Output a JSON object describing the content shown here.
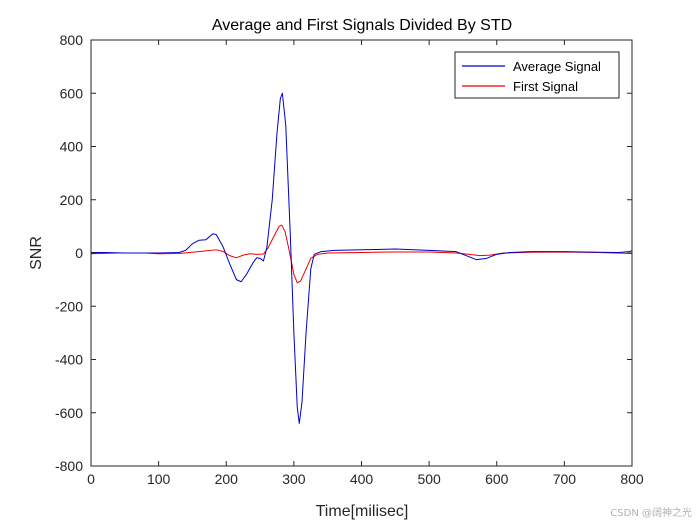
{
  "chart_data": {
    "type": "line",
    "title": "Average and First Signals Divided By STD",
    "xlabel": "Time[milisec]",
    "ylabel": "SNR",
    "xlim": [
      0,
      800
    ],
    "ylim": [
      -800,
      800
    ],
    "xticks": [
      0,
      100,
      200,
      300,
      400,
      500,
      600,
      700,
      800
    ],
    "yticks": [
      -800,
      -600,
      -400,
      -200,
      0,
      200,
      400,
      600,
      800
    ],
    "grid": false,
    "legend_position": "top-right",
    "series": [
      {
        "name": "Average Signal",
        "color": "#0000cc",
        "points": [
          [
            0,
            2
          ],
          [
            20,
            2
          ],
          [
            50,
            0
          ],
          [
            80,
            0
          ],
          [
            100,
            0
          ],
          [
            130,
            2
          ],
          [
            140,
            10
          ],
          [
            150,
            35
          ],
          [
            160,
            48
          ],
          [
            170,
            50
          ],
          [
            180,
            72
          ],
          [
            185,
            70
          ],
          [
            195,
            25
          ],
          [
            205,
            -40
          ],
          [
            215,
            -100
          ],
          [
            222,
            -108
          ],
          [
            230,
            -80
          ],
          [
            240,
            -35
          ],
          [
            245,
            -18
          ],
          [
            250,
            -20
          ],
          [
            255,
            -30
          ],
          [
            260,
            20
          ],
          [
            268,
            200
          ],
          [
            275,
            450
          ],
          [
            280,
            580
          ],
          [
            283,
            600
          ],
          [
            288,
            480
          ],
          [
            295,
            50
          ],
          [
            300,
            -300
          ],
          [
            305,
            -580
          ],
          [
            308,
            -640
          ],
          [
            312,
            -560
          ],
          [
            318,
            -300
          ],
          [
            325,
            -60
          ],
          [
            330,
            -5
          ],
          [
            340,
            5
          ],
          [
            360,
            10
          ],
          [
            400,
            12
          ],
          [
            450,
            15
          ],
          [
            500,
            10
          ],
          [
            540,
            5
          ],
          [
            555,
            -10
          ],
          [
            570,
            -25
          ],
          [
            585,
            -20
          ],
          [
            600,
            -5
          ],
          [
            620,
            2
          ],
          [
            650,
            5
          ],
          [
            700,
            5
          ],
          [
            750,
            3
          ],
          [
            780,
            2
          ],
          [
            795,
            5
          ],
          [
            800,
            8
          ]
        ]
      },
      {
        "name": "First Signal",
        "color": "#ee0000",
        "points": [
          [
            0,
            -3
          ],
          [
            40,
            0
          ],
          [
            80,
            0
          ],
          [
            100,
            -3
          ],
          [
            130,
            -2
          ],
          [
            150,
            3
          ],
          [
            170,
            8
          ],
          [
            185,
            12
          ],
          [
            195,
            6
          ],
          [
            205,
            -10
          ],
          [
            215,
            -18
          ],
          [
            225,
            -8
          ],
          [
            235,
            -3
          ],
          [
            245,
            -5
          ],
          [
            255,
            -4
          ],
          [
            262,
            20
          ],
          [
            270,
            60
          ],
          [
            278,
            100
          ],
          [
            282,
            105
          ],
          [
            287,
            80
          ],
          [
            293,
            10
          ],
          [
            300,
            -80
          ],
          [
            305,
            -112
          ],
          [
            310,
            -105
          ],
          [
            318,
            -60
          ],
          [
            325,
            -20
          ],
          [
            335,
            -5
          ],
          [
            350,
            0
          ],
          [
            400,
            2
          ],
          [
            450,
            4
          ],
          [
            500,
            4
          ],
          [
            540,
            0
          ],
          [
            560,
            -5
          ],
          [
            575,
            -10
          ],
          [
            590,
            -8
          ],
          [
            610,
            0
          ],
          [
            650,
            3
          ],
          [
            700,
            4
          ],
          [
            750,
            2
          ],
          [
            800,
            -2
          ]
        ]
      }
    ]
  },
  "watermark": "CSDN @阔神之光"
}
